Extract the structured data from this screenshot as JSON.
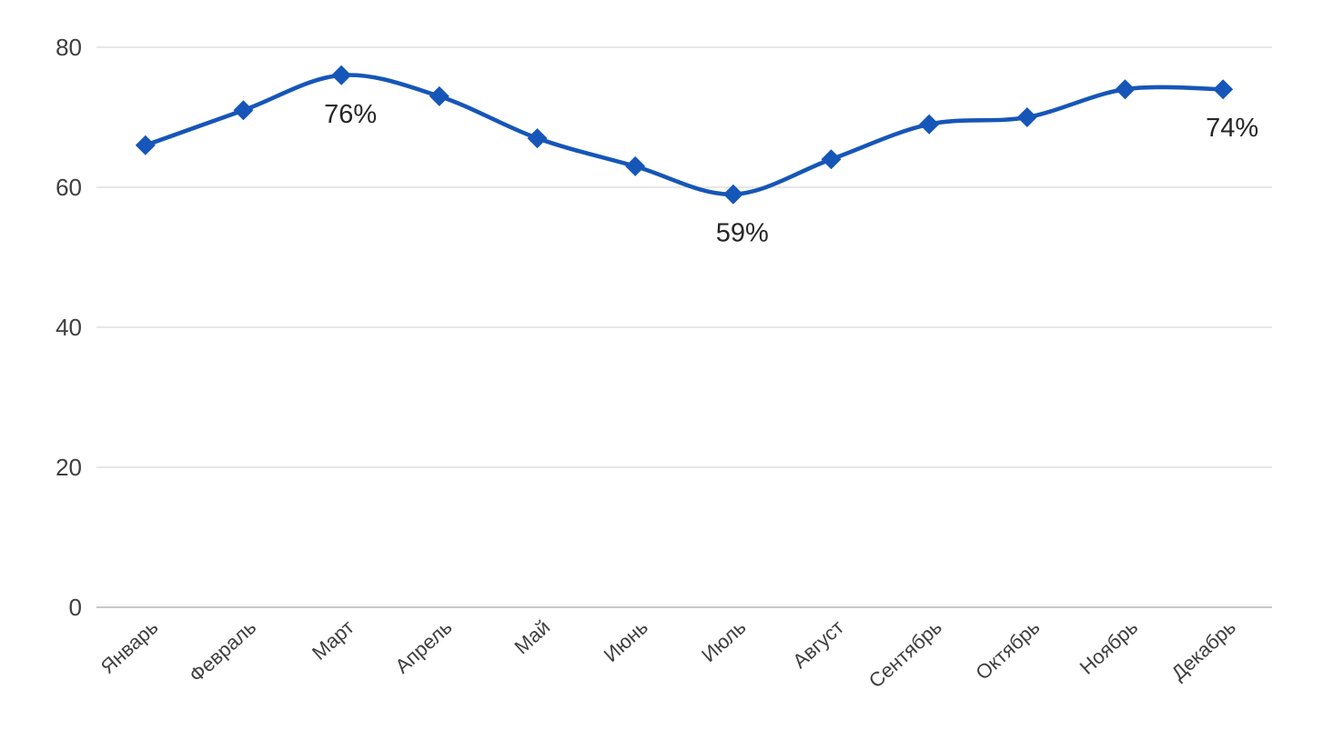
{
  "chart_data": {
    "type": "line",
    "title": "",
    "xlabel": "",
    "ylabel": "",
    "categories": [
      "Январь",
      "Февраль",
      "Март",
      "Апрель",
      "Май",
      "Июнь",
      "Июль",
      "Август",
      "Сентябрь",
      "Октябрь",
      "Ноябрь",
      "Декабрь"
    ],
    "series": [
      {
        "name": "",
        "values": [
          66,
          71,
          76,
          73,
          67,
          63,
          59,
          64,
          69,
          70,
          74,
          74
        ]
      }
    ],
    "data_labels": [
      {
        "index": 2,
        "text": "76%"
      },
      {
        "index": 6,
        "text": "59%"
      },
      {
        "index": 11,
        "text": "74%"
      }
    ],
    "y_ticks": [
      0,
      20,
      40,
      60,
      80
    ],
    "ylim": [
      0,
      80
    ],
    "grid": true,
    "smooth_line": true,
    "marker_shape": "diamond",
    "legend_position": "none",
    "x_label_rotation_deg": -42,
    "colors": {
      "line": "#1656b8",
      "marker": "#1656b8",
      "gridline": "#d9d9d9",
      "axis_line": "#b7b7b7",
      "tick_label": "#3f3f3f",
      "data_label": "#262626",
      "background": "#ffffff"
    }
  }
}
